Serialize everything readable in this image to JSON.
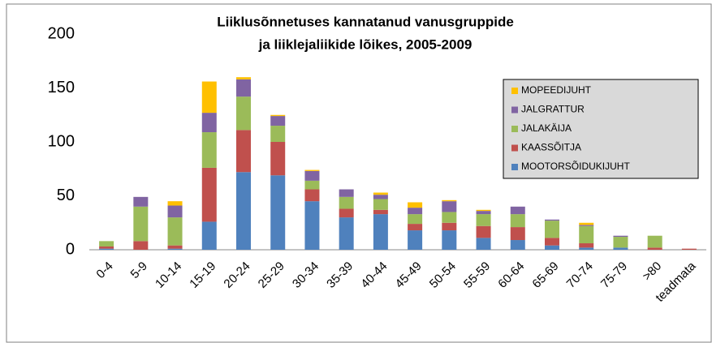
{
  "chart_data": {
    "type": "stacked_bar",
    "title": [
      "Liiklusõnnetuses kannatanud vanusgruppide",
      "ja liiklejaliikide lõikes, 2005-2009"
    ],
    "categories": [
      "0-4",
      "5-9",
      "10-14",
      "15-19",
      "20-24",
      "25-29",
      "30-34",
      "35-39",
      "40-44",
      "45-49",
      "50-54",
      "55-59",
      "60-64",
      "65-69",
      "70-74",
      "75-79",
      ">80",
      "teadmata"
    ],
    "series": [
      {
        "name": "MOOTORSÕIDUKIJUHT",
        "color": "#4f81bd",
        "values": [
          1,
          0,
          1,
          26,
          72,
          69,
          45,
          30,
          33,
          18,
          18,
          11,
          9,
          4,
          2,
          2,
          0,
          0
        ]
      },
      {
        "name": "KAASSÕITJA",
        "color": "#c0504d",
        "values": [
          2,
          8,
          3,
          50,
          39,
          31,
          11,
          8,
          4,
          6,
          7,
          11,
          12,
          7,
          4,
          0,
          2,
          1
        ]
      },
      {
        "name": "JALAKÄIJA",
        "color": "#9bbb59",
        "values": [
          5,
          32,
          26,
          33,
          31,
          15,
          8,
          11,
          10,
          9,
          10,
          11,
          12,
          16,
          16,
          10,
          11,
          0
        ]
      },
      {
        "name": "JALGRATTUR",
        "color": "#8064a2",
        "values": [
          0,
          9,
          11,
          18,
          16,
          9,
          9,
          7,
          4,
          6,
          10,
          3,
          7,
          1,
          1,
          1,
          0,
          0
        ]
      },
      {
        "name": "MOPEEDIJUHT",
        "color": "#ffc000",
        "values": [
          0,
          0,
          4,
          29,
          2,
          1,
          1,
          0,
          2,
          5,
          1,
          1,
          0,
          0,
          2,
          0,
          0,
          0
        ]
      }
    ],
    "ylim": [
      0,
      200
    ],
    "yticks": [
      0,
      50,
      100,
      150,
      200
    ],
    "grid": false,
    "legend": "right"
  }
}
